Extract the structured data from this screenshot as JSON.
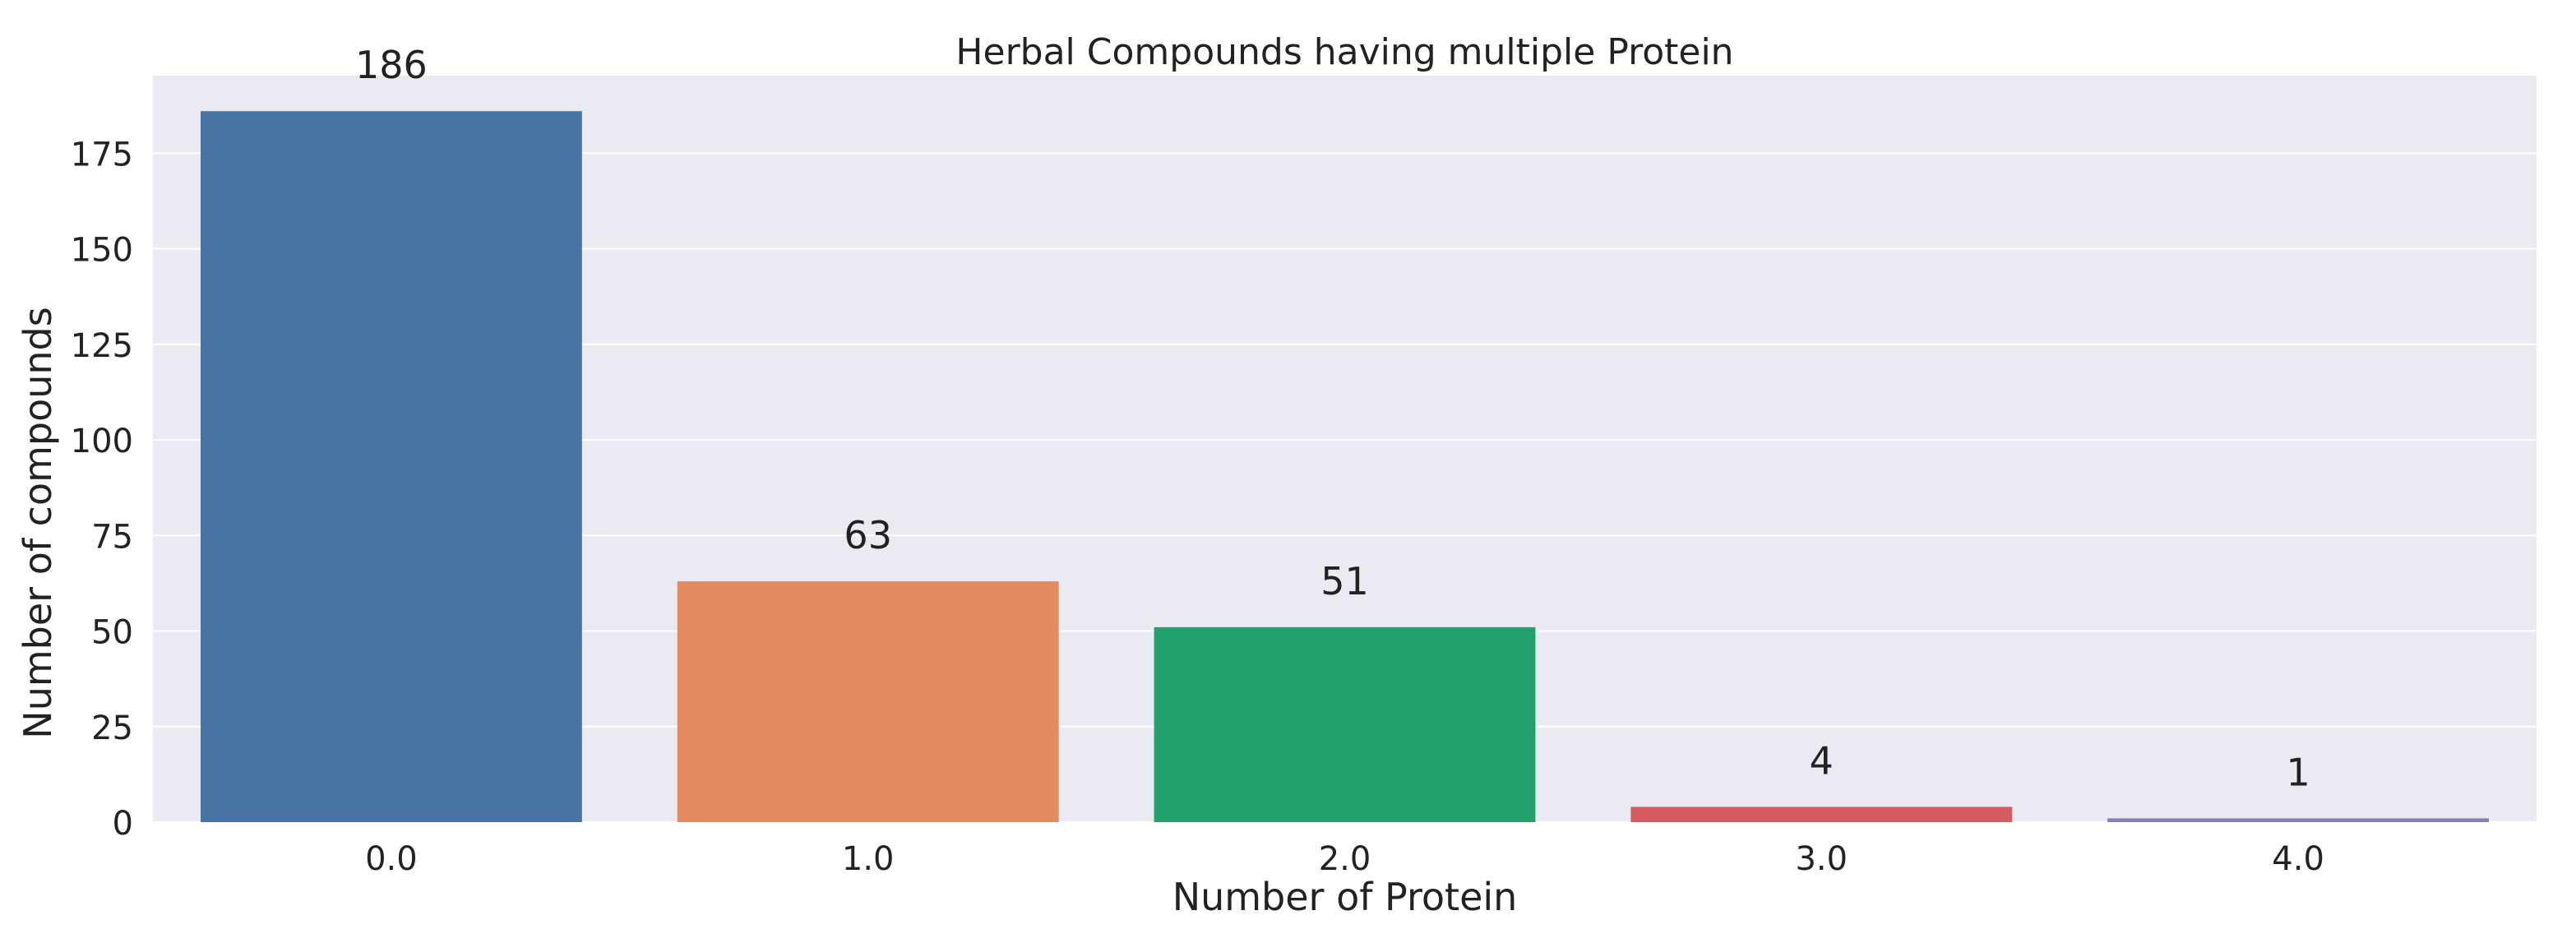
{
  "chart_data": {
    "type": "bar",
    "title": "Herbal Compounds having multiple Protein",
    "xlabel": "Number of Protein",
    "ylabel": "Number of compounds",
    "categories": [
      "0.0",
      "1.0",
      "2.0",
      "3.0",
      "4.0"
    ],
    "values": [
      186,
      63,
      51,
      4,
      1
    ],
    "data_labels": [
      "186",
      "63",
      "51",
      "4",
      "1"
    ],
    "colors": [
      "#4874a4",
      "#e38a61",
      "#23a16d",
      "#d55c5e",
      "#8f7bb5"
    ],
    "y_ticks": [
      0,
      25,
      50,
      75,
      100,
      125,
      150,
      175
    ],
    "y_tick_labels": [
      "0",
      "25",
      "50",
      "75",
      "100",
      "125",
      "150",
      "175"
    ],
    "ylim": [
      0,
      195.3
    ],
    "grid": true,
    "legend": "none",
    "background_color": "#eaeaf2",
    "grid_color": "#ffffff"
  }
}
